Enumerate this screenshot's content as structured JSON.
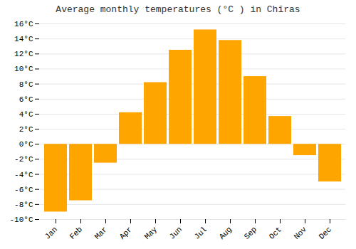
{
  "chart_data": {
    "type": "bar",
    "title": "Average monthly temperatures (°C ) in Chīras",
    "categories": [
      "Jan",
      "Feb",
      "Mar",
      "Apr",
      "May",
      "Jun",
      "Jul",
      "Aug",
      "Sep",
      "Oct",
      "Nov",
      "Dec"
    ],
    "values": [
      -9.0,
      -7.5,
      -2.5,
      4.2,
      8.2,
      12.5,
      15.2,
      13.8,
      9.0,
      3.7,
      -1.5,
      -5.0
    ],
    "color": "#FFA500",
    "ylim": [
      -10,
      16
    ],
    "yticks": [
      {
        "value": -10,
        "label": "-10°C"
      },
      {
        "value": -8,
        "label": "-8°C"
      },
      {
        "value": -6,
        "label": "-6°C"
      },
      {
        "value": -4,
        "label": "-4°C"
      },
      {
        "value": -2,
        "label": "-2°C"
      },
      {
        "value": 0,
        "label": "0°C"
      },
      {
        "value": 2,
        "label": "2°C"
      },
      {
        "value": 4,
        "label": "4°C"
      },
      {
        "value": 6,
        "label": "6°C"
      },
      {
        "value": 8,
        "label": "8°C"
      },
      {
        "value": 10,
        "label": "10°C"
      },
      {
        "value": 12,
        "label": "12°C"
      },
      {
        "value": 14,
        "label": "14°C"
      },
      {
        "value": 16,
        "label": "16°C"
      }
    ],
    "grid": true
  }
}
